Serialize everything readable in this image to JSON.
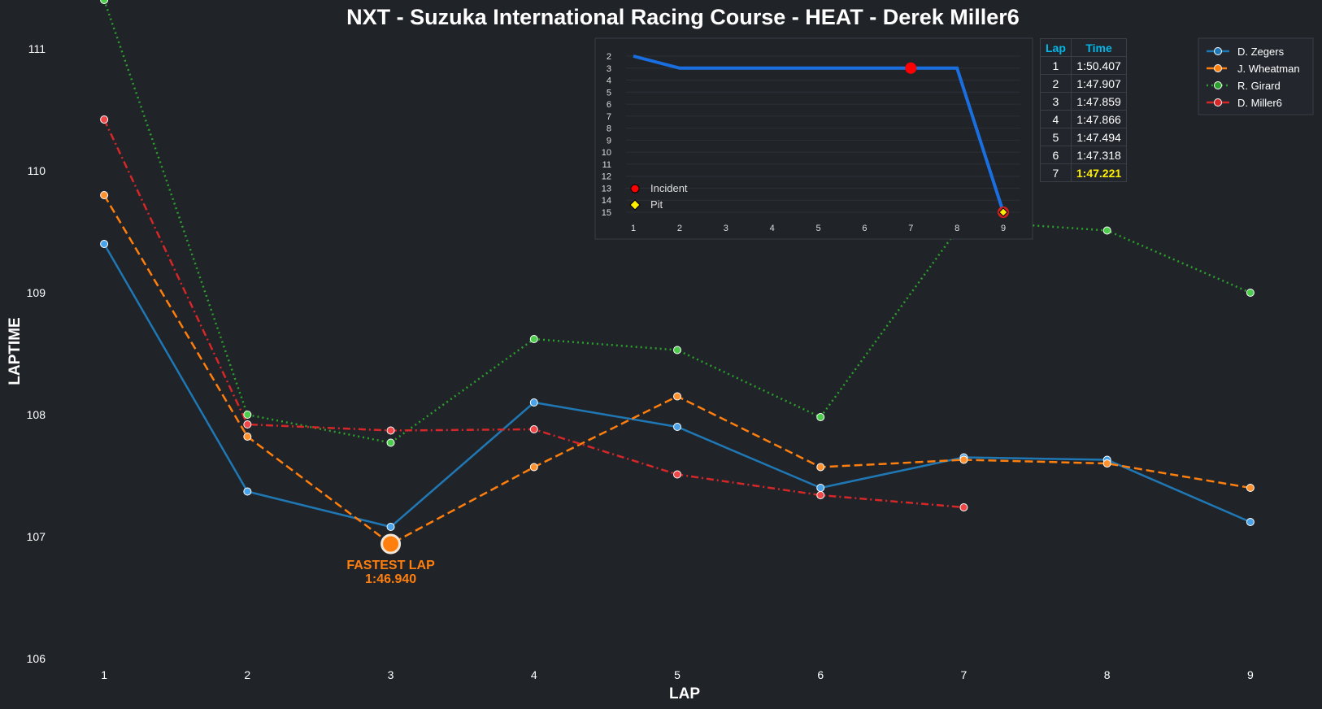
{
  "chart_data": [
    {
      "type": "line",
      "title": "NXT - Suzuka International Racing Course - HEAT - Derek Miller6",
      "xlabel": "LAP",
      "ylabel": "LAPTIME",
      "x": [
        1,
        2,
        3,
        4,
        5,
        6,
        7,
        8,
        9
      ],
      "xlim": [
        0.5,
        9.5
      ],
      "ylim": [
        105.9,
        111.4
      ],
      "yticks": [
        106,
        107,
        108,
        109,
        110,
        111
      ],
      "grid": false,
      "legend_position": "top-right",
      "series": [
        {
          "name": "D. Zegers",
          "color": "#1f77b4",
          "style": "solid",
          "values": [
            109.4,
            107.37,
            107.08,
            108.1,
            107.9,
            107.4,
            107.65,
            107.63,
            107.12
          ]
        },
        {
          "name": "J. Wheatman",
          "color": "#ff7f0e",
          "style": "dashed",
          "values": [
            109.8,
            107.82,
            106.94,
            107.57,
            108.15,
            107.57,
            107.63,
            107.6,
            107.4
          ]
        },
        {
          "name": "R. Girard",
          "color": "#2ca02c",
          "style": "dotted",
          "values": [
            111.4,
            108.0,
            107.77,
            108.62,
            108.53,
            107.98,
            109.59,
            109.51,
            109.0
          ]
        },
        {
          "name": "D. Miller6",
          "color": "#d62728",
          "style": "dashdot",
          "values": [
            110.42,
            107.92,
            107.87,
            107.88,
            107.51,
            107.34,
            107.24,
            null,
            null
          ]
        }
      ],
      "annotation": {
        "label": "FASTEST LAP",
        "time": "1:46.940",
        "lap": 3,
        "value": 106.94,
        "series": "J. Wheatman"
      }
    },
    {
      "type": "line",
      "title": "",
      "x": [
        1,
        2,
        3,
        4,
        5,
        6,
        7,
        8,
        9
      ],
      "yticks": [
        2,
        3,
        4,
        5,
        6,
        7,
        8,
        9,
        10,
        11,
        12,
        13,
        14,
        15
      ],
      "ylim": [
        15.8,
        1.6
      ],
      "values": [
        2,
        3,
        3,
        3,
        3,
        3,
        3,
        3,
        15
      ],
      "color": "#1a6fe0",
      "markers": [
        {
          "type": "Incident",
          "lap": 7,
          "position": 3,
          "color": "#ff0000"
        },
        {
          "type": "Pit",
          "lap": 9,
          "position": 15,
          "color": "#ffee00"
        }
      ],
      "legend": [
        "Incident",
        "Pit"
      ]
    }
  ],
  "lap_table": {
    "headers": [
      "Lap",
      "Time"
    ],
    "rows": [
      {
        "lap": "1",
        "time": "1:50.407"
      },
      {
        "lap": "2",
        "time": "1:47.907"
      },
      {
        "lap": "3",
        "time": "1:47.859"
      },
      {
        "lap": "4",
        "time": "1:47.866"
      },
      {
        "lap": "5",
        "time": "1:47.494"
      },
      {
        "lap": "6",
        "time": "1:47.318"
      },
      {
        "lap": "7",
        "time": "1:47.221"
      }
    ],
    "best_row": 6
  },
  "colors": {
    "background": "#202328",
    "highlight": "#ffee00",
    "header": "#00b7e8"
  }
}
